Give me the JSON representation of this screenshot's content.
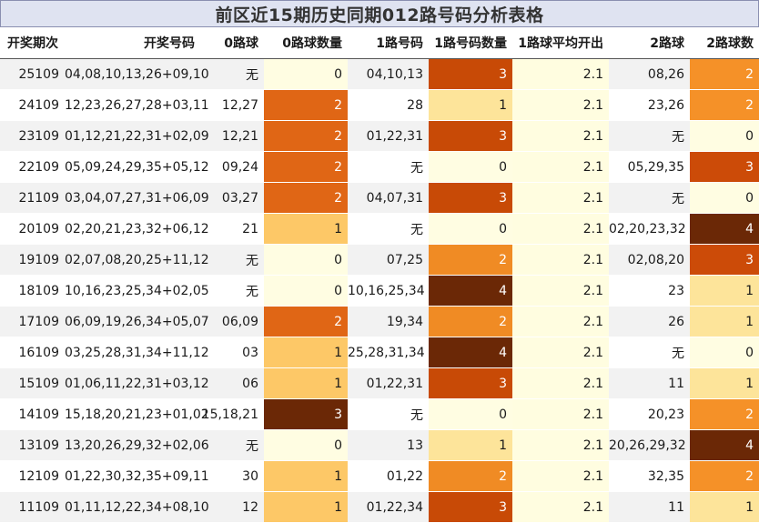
{
  "title": "前区近15期历史同期012路号码分析表格",
  "headers": [
    "开奖期次",
    "开奖号码",
    "0路球",
    "0路球数量",
    "1路号码",
    "1路号码数量",
    "1路球平均开出",
    "2路球",
    "2路球数"
  ],
  "rows": [
    {
      "issue": "25109",
      "numbers": "04,08,10,13,26+09,10",
      "r0": "无",
      "r0_count": 0,
      "r1": "04,10,13",
      "r1_count": 3,
      "r1_avg": "2.1",
      "r2": "08,26",
      "r2_count": 2
    },
    {
      "issue": "24109",
      "numbers": "12,23,26,27,28+03,11",
      "r0": "12,27",
      "r0_count": 2,
      "r1": "28",
      "r1_count": 1,
      "r1_avg": "2.1",
      "r2": "23,26",
      "r2_count": 2
    },
    {
      "issue": "23109",
      "numbers": "01,12,21,22,31+02,09",
      "r0": "12,21",
      "r0_count": 2,
      "r1": "01,22,31",
      "r1_count": 3,
      "r1_avg": "2.1",
      "r2": "无",
      "r2_count": 0
    },
    {
      "issue": "22109",
      "numbers": "05,09,24,29,35+05,12",
      "r0": "09,24",
      "r0_count": 2,
      "r1": "无",
      "r1_count": 0,
      "r1_avg": "2.1",
      "r2": "05,29,35",
      "r2_count": 3
    },
    {
      "issue": "21109",
      "numbers": "03,04,07,27,31+06,09",
      "r0": "03,27",
      "r0_count": 2,
      "r1": "04,07,31",
      "r1_count": 3,
      "r1_avg": "2.1",
      "r2": "无",
      "r2_count": 0
    },
    {
      "issue": "20109",
      "numbers": "02,20,21,23,32+06,12",
      "r0": "21",
      "r0_count": 1,
      "r1": "无",
      "r1_count": 0,
      "r1_avg": "2.1",
      "r2": "02,20,23,32",
      "r2_count": 4
    },
    {
      "issue": "19109",
      "numbers": "02,07,08,20,25+11,12",
      "r0": "无",
      "r0_count": 0,
      "r1": "07,25",
      "r1_count": 2,
      "r1_avg": "2.1",
      "r2": "02,08,20",
      "r2_count": 3
    },
    {
      "issue": "18109",
      "numbers": "10,16,23,25,34+02,05",
      "r0": "无",
      "r0_count": 0,
      "r1": "10,16,25,34",
      "r1_count": 4,
      "r1_avg": "2.1",
      "r2": "23",
      "r2_count": 1
    },
    {
      "issue": "17109",
      "numbers": "06,09,19,26,34+05,07",
      "r0": "06,09",
      "r0_count": 2,
      "r1": "19,34",
      "r1_count": 2,
      "r1_avg": "2.1",
      "r2": "26",
      "r2_count": 1
    },
    {
      "issue": "16109",
      "numbers": "03,25,28,31,34+11,12",
      "r0": "03",
      "r0_count": 1,
      "r1": "25,28,31,34",
      "r1_count": 4,
      "r1_avg": "2.1",
      "r2": "无",
      "r2_count": 0
    },
    {
      "issue": "15109",
      "numbers": "01,06,11,22,31+03,12",
      "r0": "06",
      "r0_count": 1,
      "r1": "01,22,31",
      "r1_count": 3,
      "r1_avg": "2.1",
      "r2": "11",
      "r2_count": 1
    },
    {
      "issue": "14109",
      "numbers": "15,18,20,21,23+01,02",
      "r0": "15,18,21",
      "r0_count": 3,
      "r1": "无",
      "r1_count": 0,
      "r1_avg": "2.1",
      "r2": "20,23",
      "r2_count": 2
    },
    {
      "issue": "13109",
      "numbers": "13,20,26,29,32+02,06",
      "r0": "无",
      "r0_count": 0,
      "r1": "13",
      "r1_count": 1,
      "r1_avg": "2.1",
      "r2": "20,26,29,32",
      "r2_count": 4
    },
    {
      "issue": "12109",
      "numbers": "01,22,30,32,35+09,11",
      "r0": "30",
      "r0_count": 1,
      "r1": "01,22",
      "r1_count": 2,
      "r1_avg": "2.1",
      "r2": "32,35",
      "r2_count": 2
    },
    {
      "issue": "11109",
      "numbers": "01,11,12,22,34+08,10",
      "r0": "12",
      "r0_count": 1,
      "r1": "01,22,34",
      "r1_count": 3,
      "r1_avg": "2.1",
      "r2": "11",
      "r2_count": 1
    }
  ]
}
